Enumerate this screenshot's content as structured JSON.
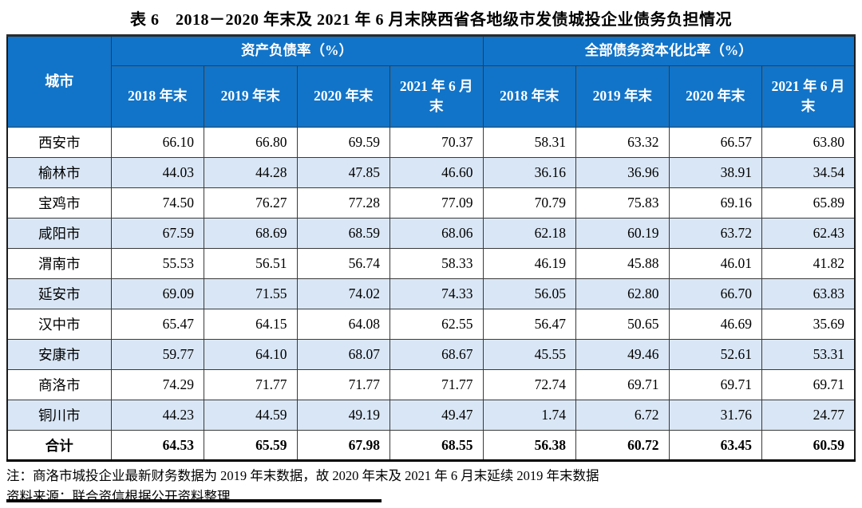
{
  "title": "表 6　2018－2020 年末及 2021 年 6 月末陕西省各地级市发债城投企业债务负担情况",
  "colors": {
    "header_blue": "#1274C8",
    "stripe_blue": "#D9E6F5",
    "header_text": "#FFFFFF"
  },
  "table": {
    "city_header": "城市",
    "group_headers": [
      "资产负债率（%）",
      "全部债务资本化比率（%）"
    ],
    "period_headers": [
      "2018 年末",
      "2019 年末",
      "2020 年末",
      "2021 年 6 月末"
    ],
    "rows": [
      {
        "city": "西安市",
        "values": [
          "66.10",
          "66.80",
          "69.59",
          "70.37",
          "58.31",
          "63.32",
          "66.57",
          "63.80"
        ]
      },
      {
        "city": "榆林市",
        "values": [
          "44.03",
          "44.28",
          "47.85",
          "46.60",
          "36.16",
          "36.96",
          "38.91",
          "34.54"
        ]
      },
      {
        "city": "宝鸡市",
        "values": [
          "74.50",
          "76.27",
          "77.28",
          "77.09",
          "70.79",
          "75.83",
          "69.16",
          "65.89"
        ]
      },
      {
        "city": "咸阳市",
        "values": [
          "67.59",
          "68.69",
          "68.59",
          "68.06",
          "62.18",
          "60.19",
          "63.72",
          "62.43"
        ]
      },
      {
        "city": "渭南市",
        "values": [
          "55.53",
          "56.51",
          "56.74",
          "58.33",
          "46.19",
          "45.88",
          "46.01",
          "41.82"
        ]
      },
      {
        "city": "延安市",
        "values": [
          "69.09",
          "71.55",
          "74.02",
          "74.33",
          "56.05",
          "62.80",
          "66.70",
          "63.83"
        ]
      },
      {
        "city": "汉中市",
        "values": [
          "65.47",
          "64.15",
          "64.08",
          "62.55",
          "56.47",
          "50.65",
          "46.69",
          "35.69"
        ]
      },
      {
        "city": "安康市",
        "values": [
          "59.77",
          "64.10",
          "68.07",
          "68.67",
          "45.55",
          "49.46",
          "52.61",
          "53.31"
        ]
      },
      {
        "city": "商洛市",
        "values": [
          "74.29",
          "71.77",
          "71.77",
          "71.77",
          "72.74",
          "69.71",
          "69.71",
          "69.71"
        ]
      },
      {
        "city": "铜川市",
        "values": [
          "44.23",
          "44.59",
          "49.19",
          "49.47",
          "1.74",
          "6.72",
          "31.76",
          "24.77"
        ]
      }
    ],
    "total_row": {
      "city": "合计",
      "values": [
        "64.53",
        "65.59",
        "67.98",
        "68.55",
        "56.38",
        "60.72",
        "63.45",
        "60.59"
      ]
    }
  },
  "notes": [
    "注：商洛市城投企业最新财务数据为 2019 年末数据，故 2020 年末及 2021 年 6 月末延续 2019 年末数据",
    "资料来源：联合资信根据公开资料整理"
  ]
}
